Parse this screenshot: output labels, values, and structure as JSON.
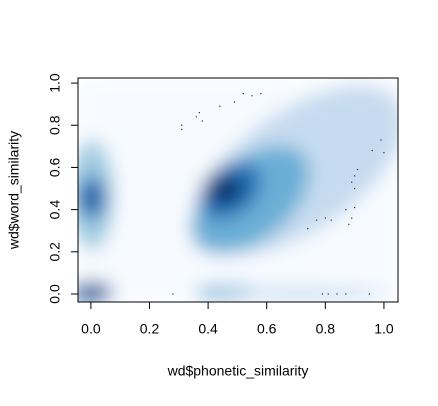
{
  "chart_data": {
    "type": "smoothscatter",
    "xlabel": "wd$phonetic_similarity",
    "ylabel": "wd$word_similarity",
    "xlim": [
      -0.044,
      1.048
    ],
    "ylim": [
      -0.038,
      1.024
    ],
    "xticks": [
      {
        "value": 0,
        "label": "0.0"
      },
      0.2,
      0.4,
      0.6,
      0.8,
      {
        "value": 1,
        "label": "1.0"
      }
    ],
    "yticks": [
      {
        "value": 0,
        "label": "0.0"
      },
      0.2,
      0.4,
      0.6,
      0.8,
      {
        "value": 1,
        "label": "1.0"
      }
    ],
    "color": "#08306b",
    "x": [
      0.28,
      0.36,
      0.37,
      0.38,
      0.44,
      0.49,
      0.52,
      0.55,
      0.58,
      0.31,
      0.31,
      0.74,
      0.77,
      0.8,
      0.82,
      0.87,
      0.9,
      0.89,
      0.9,
      0.91,
      0.88,
      0.89,
      0.9,
      0.99,
      1.0,
      0.96,
      0.79,
      0.81,
      0.84,
      0.87,
      0.95
    ],
    "y": [
      0.0,
      0.84,
      0.86,
      0.82,
      0.89,
      0.91,
      0.95,
      0.94,
      0.95,
      0.78,
      0.8,
      0.31,
      0.35,
      0.36,
      0.35,
      0.4,
      0.5,
      0.53,
      0.56,
      0.59,
      0.33,
      0.36,
      0.41,
      0.73,
      0.67,
      0.68,
      0.0,
      0.0,
      0.0,
      0.0,
      0.0
    ]
  }
}
